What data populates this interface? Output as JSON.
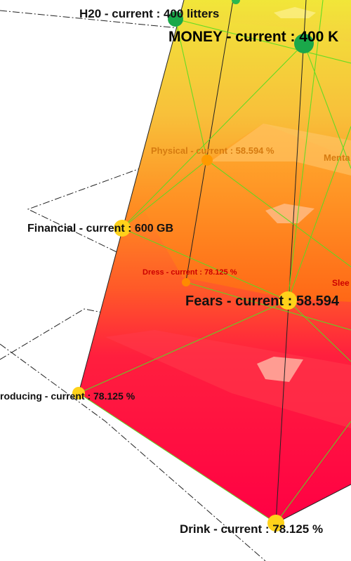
{
  "labels": {
    "h2o": "H20 - current : 400 litters",
    "money": "MONEY - current : 400 K",
    "physical": "Physical - current : 58.594 %",
    "mental": "Menta",
    "financial": "Financial - current : 600 GB",
    "dress": "Dress - current : 78.125 %",
    "sleep": "Slee",
    "fears": "Fears - current : 58.594",
    "producing": "roducing - current : 78.125 %",
    "drink": "Drink - current : 78.125 %"
  },
  "colors": {
    "top": "#f2e63a",
    "middle": "#ff8c1a",
    "bottom": "#ff0044",
    "node_green": "#1aa84a",
    "node_yellow": "#ffd21a",
    "node_orange": "#ff8a00",
    "edge": "#66dd33"
  }
}
